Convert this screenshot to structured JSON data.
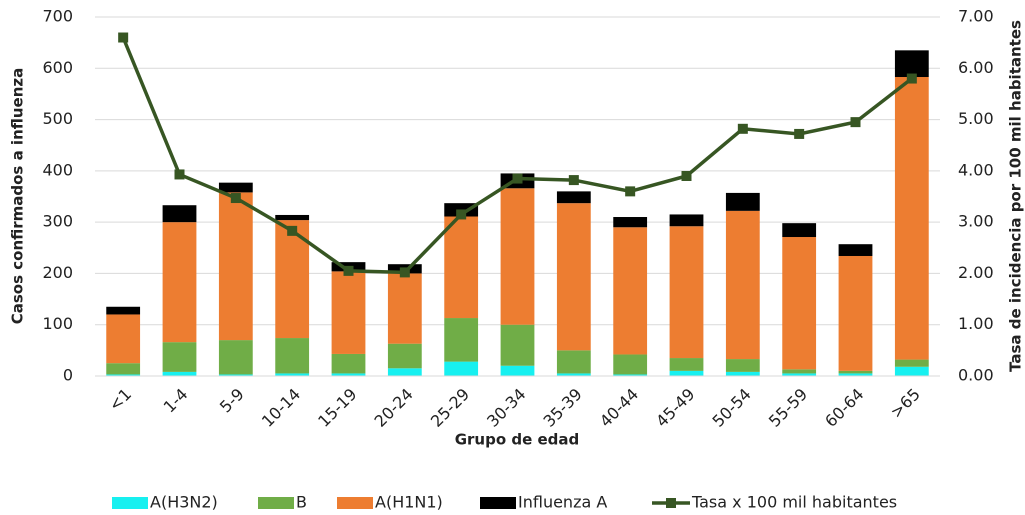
{
  "chart_data": {
    "type": "bar",
    "x_label": "Grupo de edad",
    "y_label": "Casos confirmados a influenza",
    "y2_label": "Tasa de incidencia por 100 mil habitantes",
    "categories": [
      "<1",
      "1-4",
      "5-9",
      "10-14",
      "15-19",
      "20-24",
      "25-29",
      "30-34",
      "35-39",
      "40-44",
      "45-49",
      "50-54",
      "55-59",
      "60-64",
      ">65"
    ],
    "series": [
      {
        "name": "A(H3N2)",
        "color": "#17f0f0",
        "values": [
          3,
          8,
          3,
          5,
          5,
          15,
          28,
          20,
          5,
          3,
          10,
          8,
          5,
          5,
          18
        ]
      },
      {
        "name": "B",
        "color": "#70ad47",
        "values": [
          22,
          58,
          67,
          69,
          38,
          48,
          85,
          80,
          45,
          39,
          25,
          25,
          8,
          5,
          14
        ]
      },
      {
        "name": "A(H1N1)",
        "color": "#ed7d31",
        "values": [
          95,
          234,
          288,
          230,
          161,
          137,
          198,
          266,
          287,
          248,
          257,
          289,
          258,
          224,
          551
        ]
      },
      {
        "name": "Influenza A",
        "color": "#000000",
        "values": [
          15,
          33,
          19,
          10,
          18,
          18,
          26,
          29,
          23,
          20,
          23,
          35,
          27,
          23,
          52
        ]
      },
      {
        "name": "Tasa x 100 mil habitantes",
        "color": "#375623",
        "type": "line",
        "axis": "y2",
        "values": [
          6.6,
          3.93,
          3.47,
          2.83,
          2.05,
          2.02,
          3.15,
          3.85,
          3.82,
          3.6,
          3.9,
          4.82,
          4.72,
          4.95,
          5.8
        ]
      }
    ],
    "stacked": true,
    "ylim": [
      0,
      700
    ],
    "yticks": [
      0,
      100,
      200,
      300,
      400,
      500,
      600,
      700
    ],
    "y2lim": [
      0,
      7
    ],
    "y2ticks": [
      {
        "value": 0,
        "label": "0.00"
      },
      {
        "value": 1,
        "label": "1.00"
      },
      {
        "value": 2,
        "label": "2.00"
      },
      {
        "value": 3,
        "label": "3.00"
      },
      {
        "value": 4,
        "label": "4.00"
      },
      {
        "value": 5,
        "label": "5.00"
      },
      {
        "value": 6,
        "label": "6.00"
      },
      {
        "value": 7,
        "label": "7.00"
      }
    ],
    "grid": true,
    "legend": "bottom"
  }
}
